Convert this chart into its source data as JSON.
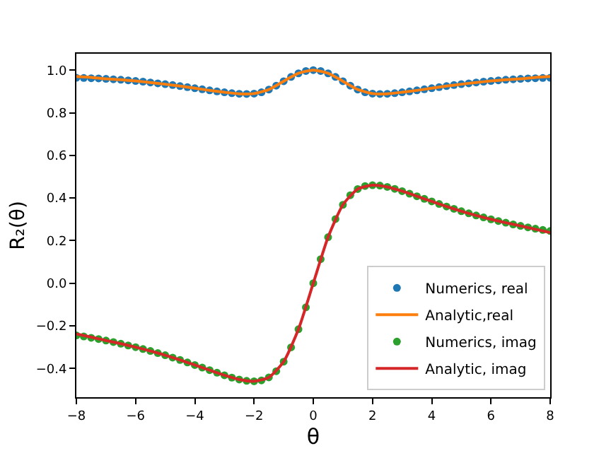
{
  "chart_data": {
    "type": "line",
    "xlabel": "θ",
    "ylabel": "R₂(θ)",
    "xlim": [
      -8,
      8
    ],
    "ylim": [
      -0.535,
      1.077
    ],
    "xticks": [
      {
        "value": -8,
        "label": "−8"
      },
      {
        "value": -6,
        "label": "−6"
      },
      {
        "value": -4,
        "label": "−4"
      },
      {
        "value": -2,
        "label": "−2"
      },
      0,
      2,
      4,
      6,
      8
    ],
    "yticks": [
      {
        "value": -0.4,
        "label": "−0.4"
      },
      {
        "value": -0.2,
        "label": "−0.2"
      },
      {
        "value": 0,
        "label": "0.0"
      },
      {
        "value": 0.2,
        "label": "0.2"
      },
      {
        "value": 0.4,
        "label": "0.4"
      },
      {
        "value": 0.6,
        "label": "0.6"
      },
      {
        "value": 0.8,
        "label": "0.8"
      },
      {
        "value": 1.0,
        "label": "1.0"
      }
    ],
    "legend": "bottom right",
    "series": [
      {
        "name": "Numerics, real",
        "type": "scatter",
        "marker": "circle",
        "color": "#1f77b4",
        "x": [
          -8,
          -7.75,
          -7.5,
          -7.25,
          -7,
          -6.75,
          -6.5,
          -6.25,
          -6,
          -5.75,
          -5.5,
          -5.25,
          -5,
          -4.75,
          -4.5,
          -4.25,
          -4,
          -3.75,
          -3.5,
          -3.25,
          -3,
          -2.75,
          -2.5,
          -2.25,
          -2,
          -1.75,
          -1.5,
          -1.25,
          -1,
          -0.75,
          -0.5,
          -0.25,
          0,
          0.25,
          0.5,
          0.75,
          1,
          1.25,
          1.5,
          1.75,
          2,
          2.25,
          2.5,
          2.75,
          3,
          3.25,
          3.5,
          3.75,
          4,
          4.25,
          4.5,
          4.75,
          5,
          5.25,
          5.5,
          5.75,
          6,
          6.25,
          6.5,
          6.75,
          7,
          7.25,
          7.5,
          7.75,
          8
        ],
        "values": [
          0.964,
          0.963,
          0.962,
          0.961,
          0.959,
          0.957,
          0.955,
          0.952,
          0.949,
          0.946,
          0.942,
          0.938,
          0.934,
          0.93,
          0.925,
          0.92,
          0.915,
          0.91,
          0.905,
          0.9,
          0.896,
          0.892,
          0.889,
          0.888,
          0.89,
          0.896,
          0.909,
          0.927,
          0.948,
          0.968,
          0.985,
          0.996,
          1.0,
          0.996,
          0.985,
          0.968,
          0.948,
          0.927,
          0.909,
          0.896,
          0.89,
          0.888,
          0.889,
          0.892,
          0.896,
          0.9,
          0.905,
          0.91,
          0.915,
          0.92,
          0.925,
          0.93,
          0.934,
          0.938,
          0.942,
          0.946,
          0.949,
          0.952,
          0.955,
          0.957,
          0.959,
          0.961,
          0.962,
          0.963,
          0.964
        ]
      },
      {
        "name": "Analytic,real",
        "marker": "none",
        "color": "#ff7f0e",
        "x": [
          -8,
          -7.5,
          -7,
          -6.5,
          -6,
          -5.5,
          -5,
          -4.5,
          -4,
          -3.5,
          -3,
          -2.5,
          -2,
          -1.5,
          -1,
          -0.5,
          0,
          0.5,
          1,
          1.5,
          2,
          2.5,
          3,
          3.5,
          4,
          4.5,
          5,
          5.5,
          6,
          6.5,
          7,
          7.5,
          8
        ],
        "values": [
          0.97,
          0.966,
          0.959,
          0.955,
          0.949,
          0.942,
          0.934,
          0.925,
          0.915,
          0.905,
          0.896,
          0.889,
          0.89,
          0.909,
          0.948,
          0.985,
          1.0,
          0.985,
          0.948,
          0.909,
          0.89,
          0.889,
          0.896,
          0.905,
          0.915,
          0.925,
          0.934,
          0.942,
          0.949,
          0.955,
          0.959,
          0.966,
          0.97
        ]
      },
      {
        "name": "Numerics, imag",
        "type": "scatter",
        "marker": "circle",
        "color": "#2ca02c",
        "x": [
          -8,
          -7.75,
          -7.5,
          -7.25,
          -7,
          -6.75,
          -6.5,
          -6.25,
          -6,
          -5.75,
          -5.5,
          -5.25,
          -5,
          -4.75,
          -4.5,
          -4.25,
          -4,
          -3.75,
          -3.5,
          -3.25,
          -3,
          -2.75,
          -2.5,
          -2.25,
          -2,
          -1.75,
          -1.5,
          -1.25,
          -1,
          -0.75,
          -0.5,
          -0.25,
          0,
          0.25,
          0.5,
          0.75,
          1,
          1.25,
          1.5,
          1.75,
          2,
          2.25,
          2.5,
          2.75,
          3,
          3.25,
          3.5,
          3.75,
          4,
          4.25,
          4.5,
          4.75,
          5,
          5.25,
          5.5,
          5.75,
          6,
          6.25,
          6.5,
          6.75,
          7,
          7.25,
          7.5,
          7.75,
          8
        ],
        "values": [
          -0.245,
          -0.25,
          -0.256,
          -0.262,
          -0.269,
          -0.276,
          -0.284,
          -0.292,
          -0.3,
          -0.309,
          -0.318,
          -0.328,
          -0.338,
          -0.349,
          -0.36,
          -0.372,
          -0.384,
          -0.396,
          -0.408,
          -0.42,
          -0.432,
          -0.443,
          -0.452,
          -0.458,
          -0.46,
          -0.456,
          -0.442,
          -0.413,
          -0.368,
          -0.301,
          -0.216,
          -0.113,
          0,
          0.113,
          0.216,
          0.301,
          0.368,
          0.413,
          0.442,
          0.456,
          0.46,
          0.458,
          0.452,
          0.443,
          0.432,
          0.42,
          0.408,
          0.396,
          0.384,
          0.372,
          0.36,
          0.349,
          0.338,
          0.328,
          0.318,
          0.309,
          0.3,
          0.292,
          0.284,
          0.276,
          0.269,
          0.262,
          0.256,
          0.25,
          0.245
        ]
      },
      {
        "name": "Analytic, imag",
        "marker": "none",
        "color": "#d62728",
        "x": [
          -8,
          -7.5,
          -7,
          -6.5,
          -6,
          -5.5,
          -5,
          -4.5,
          -4,
          -3.5,
          -3,
          -2.5,
          -2,
          -1.5,
          -1,
          -0.5,
          0,
          0.5,
          1,
          1.5,
          2,
          2.5,
          3,
          3.5,
          4,
          4.5,
          5,
          5.5,
          6,
          6.5,
          7,
          7.5,
          8
        ],
        "values": [
          -0.238,
          -0.253,
          -0.269,
          -0.284,
          -0.3,
          -0.318,
          -0.338,
          -0.36,
          -0.384,
          -0.408,
          -0.432,
          -0.452,
          -0.46,
          -0.442,
          -0.368,
          -0.216,
          0,
          0.216,
          0.368,
          0.442,
          0.46,
          0.452,
          0.432,
          0.408,
          0.384,
          0.36,
          0.338,
          0.318,
          0.3,
          0.284,
          0.269,
          0.253,
          0.238
        ]
      }
    ]
  }
}
